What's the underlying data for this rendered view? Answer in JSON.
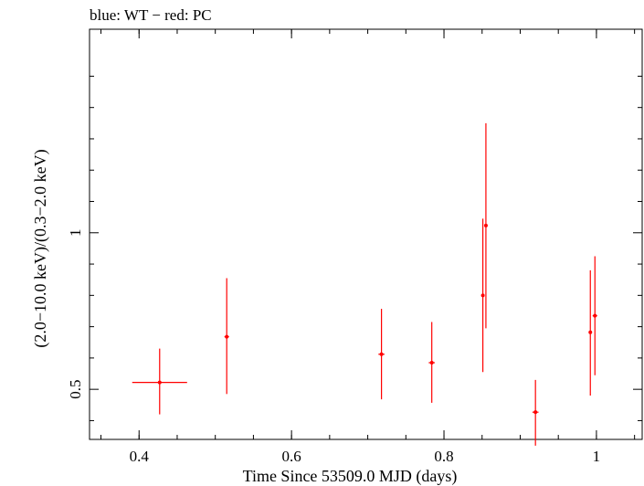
{
  "chart_data": {
    "type": "scatter",
    "title": "blue: WT − red: PC",
    "xlabel": "Time Since 53509.0 MJD (days)",
    "ylabel": "(2.0−10.0 keV)/(0.3−2.0 keV)",
    "xlim": [
      0.335,
      1.06
    ],
    "ylim": [
      0.34,
      1.65
    ],
    "x_ticks": [
      0.4,
      0.6,
      0.8,
      1.0
    ],
    "x_tick_labels": [
      "0.4",
      "0.6",
      "0.8",
      "1"
    ],
    "y_ticks": [
      0.5,
      1.0
    ],
    "y_tick_labels": [
      "0.5",
      "1"
    ],
    "y_minor": [
      0.4,
      0.6,
      0.7,
      0.8,
      0.9,
      1.1,
      1.2,
      1.3,
      1.4,
      1.5
    ],
    "x_minor_step": 0.05,
    "color": "#ff0000",
    "series": [
      {
        "name": "PC",
        "points": [
          {
            "x": 0.427,
            "y": 0.522,
            "xerr": 0.036,
            "ylo": 0.42,
            "yhi": 0.63
          },
          {
            "x": 0.515,
            "y": 0.668,
            "xerr": 0.003,
            "ylo": 0.485,
            "yhi": 0.855
          },
          {
            "x": 0.718,
            "y": 0.612,
            "xerr": 0.004,
            "ylo": 0.468,
            "yhi": 0.757
          },
          {
            "x": 0.784,
            "y": 0.585,
            "xerr": 0.004,
            "ylo": 0.457,
            "yhi": 0.715
          },
          {
            "x": 0.851,
            "y": 0.8,
            "xerr": 0.002,
            "ylo": 0.555,
            "yhi": 1.045
          },
          {
            "x": 0.855,
            "y": 1.023,
            "xerr": 0.002,
            "ylo": 0.695,
            "yhi": 1.35
          },
          {
            "x": 0.92,
            "y": 0.427,
            "xerr": 0.004,
            "ylo": 0.32,
            "yhi": 0.53
          },
          {
            "x": 0.992,
            "y": 0.682,
            "xerr": 0.002,
            "ylo": 0.48,
            "yhi": 0.88
          },
          {
            "x": 0.998,
            "y": 0.735,
            "xerr": 0.003,
            "ylo": 0.545,
            "yhi": 0.925
          }
        ]
      }
    ]
  }
}
